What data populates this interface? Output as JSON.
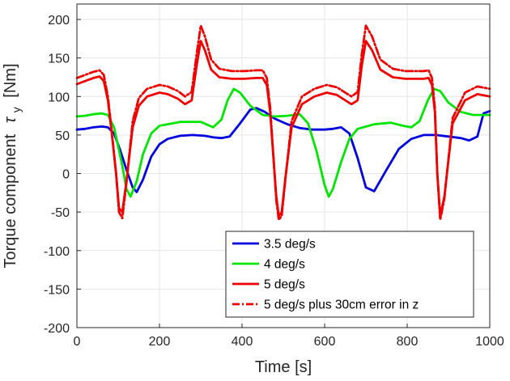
{
  "chart_data": {
    "type": "line",
    "title": "",
    "xlabel": "Time [s]",
    "ylabel_prefix": "Torque component",
    "ylabel_symbol": "τ",
    "ylabel_subscript": "y",
    "ylabel_unit": "[Nm]",
    "xlim": [
      0,
      1000
    ],
    "ylim": [
      -200,
      220
    ],
    "xticks": [
      0,
      200,
      400,
      600,
      800,
      1000
    ],
    "yticks": [
      -200,
      -150,
      -100,
      -50,
      0,
      50,
      100,
      150,
      200
    ],
    "grid": true,
    "legend_position": "bottom-right",
    "series": [
      {
        "name": "3.5 deg/s",
        "color": "#0000dd",
        "dash": "solid",
        "x": [
          0,
          20,
          40,
          60,
          75,
          90,
          105,
          120,
          135,
          145,
          160,
          180,
          200,
          220,
          250,
          280,
          310,
          330,
          350,
          370,
          395,
          420,
          435,
          455,
          480,
          510,
          540,
          570,
          600,
          620,
          640,
          660,
          680,
          700,
          720,
          750,
          780,
          810,
          840,
          870,
          900,
          930,
          950,
          970,
          985,
          1000
        ],
        "y": [
          57,
          58,
          60,
          61,
          60,
          52,
          30,
          5,
          -18,
          -24,
          -8,
          22,
          38,
          45,
          49,
          50,
          49,
          47,
          46,
          48,
          65,
          83,
          85,
          80,
          71,
          64,
          59,
          57,
          57,
          58,
          60,
          52,
          20,
          -18,
          -23,
          5,
          32,
          45,
          50,
          50,
          48,
          46,
          43,
          48,
          78,
          81
        ]
      },
      {
        "name": "4 deg/s",
        "color": "#00e400",
        "dash": "solid",
        "x": [
          0,
          20,
          40,
          60,
          75,
          90,
          100,
          110,
          120,
          130,
          145,
          160,
          180,
          200,
          250,
          300,
          330,
          350,
          365,
          380,
          395,
          420,
          450,
          480,
          510,
          540,
          560,
          580,
          600,
          610,
          620,
          640,
          660,
          680,
          720,
          760,
          790,
          810,
          830,
          850,
          865,
          880,
          900,
          930,
          960,
          1000
        ],
        "y": [
          74,
          75,
          77,
          78,
          76,
          60,
          35,
          10,
          -20,
          -30,
          -10,
          25,
          52,
          62,
          67,
          67,
          60,
          70,
          95,
          110,
          105,
          88,
          76,
          74,
          75,
          77,
          65,
          30,
          -15,
          -30,
          -20,
          15,
          45,
          58,
          64,
          66,
          62,
          60,
          68,
          95,
          110,
          107,
          92,
          80,
          76,
          76
        ]
      },
      {
        "name": "5 deg/s",
        "color": "#ee0000",
        "dash": "solid",
        "x": [
          0,
          20,
          40,
          55,
          65,
          75,
          85,
          95,
          102,
          110,
          120,
          135,
          150,
          170,
          200,
          220,
          245,
          262,
          278,
          290,
          300,
          310,
          325,
          345,
          375,
          405,
          435,
          450,
          460,
          468,
          476,
          483,
          489,
          496,
          505,
          520,
          545,
          575,
          605,
          630,
          650,
          665,
          680,
          690,
          700,
          715,
          735,
          765,
          795,
          825,
          840,
          852,
          860,
          867,
          873,
          880,
          890,
          910,
          940,
          970,
          1000
        ],
        "y": [
          116,
          120,
          124,
          126,
          120,
          95,
          50,
          0,
          -45,
          -50,
          -10,
          60,
          88,
          100,
          105,
          103,
          97,
          90,
          95,
          140,
          172,
          160,
          135,
          125,
          123,
          123,
          124,
          124,
          115,
          80,
          20,
          -30,
          -55,
          -50,
          -5,
          60,
          90,
          100,
          105,
          102,
          95,
          90,
          95,
          140,
          172,
          160,
          135,
          125,
          123,
          123,
          123,
          124,
          115,
          80,
          0,
          -55,
          -30,
          65,
          95,
          103,
          100
        ]
      },
      {
        "name": "5 deg/s plus 30cm error in z",
        "color": "#ee0000",
        "dash": "dashdot",
        "x": [
          0,
          20,
          40,
          55,
          65,
          75,
          85,
          95,
          102,
          110,
          120,
          135,
          150,
          170,
          200,
          220,
          245,
          262,
          278,
          290,
          300,
          310,
          325,
          345,
          375,
          405,
          435,
          450,
          460,
          468,
          476,
          483,
          489,
          496,
          505,
          520,
          545,
          575,
          605,
          630,
          650,
          665,
          680,
          690,
          700,
          715,
          735,
          765,
          795,
          825,
          840,
          852,
          860,
          867,
          873,
          880,
          890,
          910,
          940,
          970,
          1000
        ],
        "y": [
          124,
          128,
          132,
          134,
          128,
          100,
          52,
          0,
          -50,
          -58,
          -12,
          68,
          98,
          110,
          115,
          113,
          107,
          100,
          106,
          155,
          192,
          178,
          148,
          136,
          133,
          133,
          134,
          134,
          124,
          86,
          22,
          -35,
          -60,
          -55,
          -7,
          68,
          100,
          110,
          115,
          112,
          105,
          100,
          106,
          155,
          192,
          178,
          148,
          136,
          133,
          133,
          133,
          134,
          124,
          86,
          0,
          -60,
          -33,
          72,
          105,
          113,
          110
        ]
      }
    ]
  }
}
